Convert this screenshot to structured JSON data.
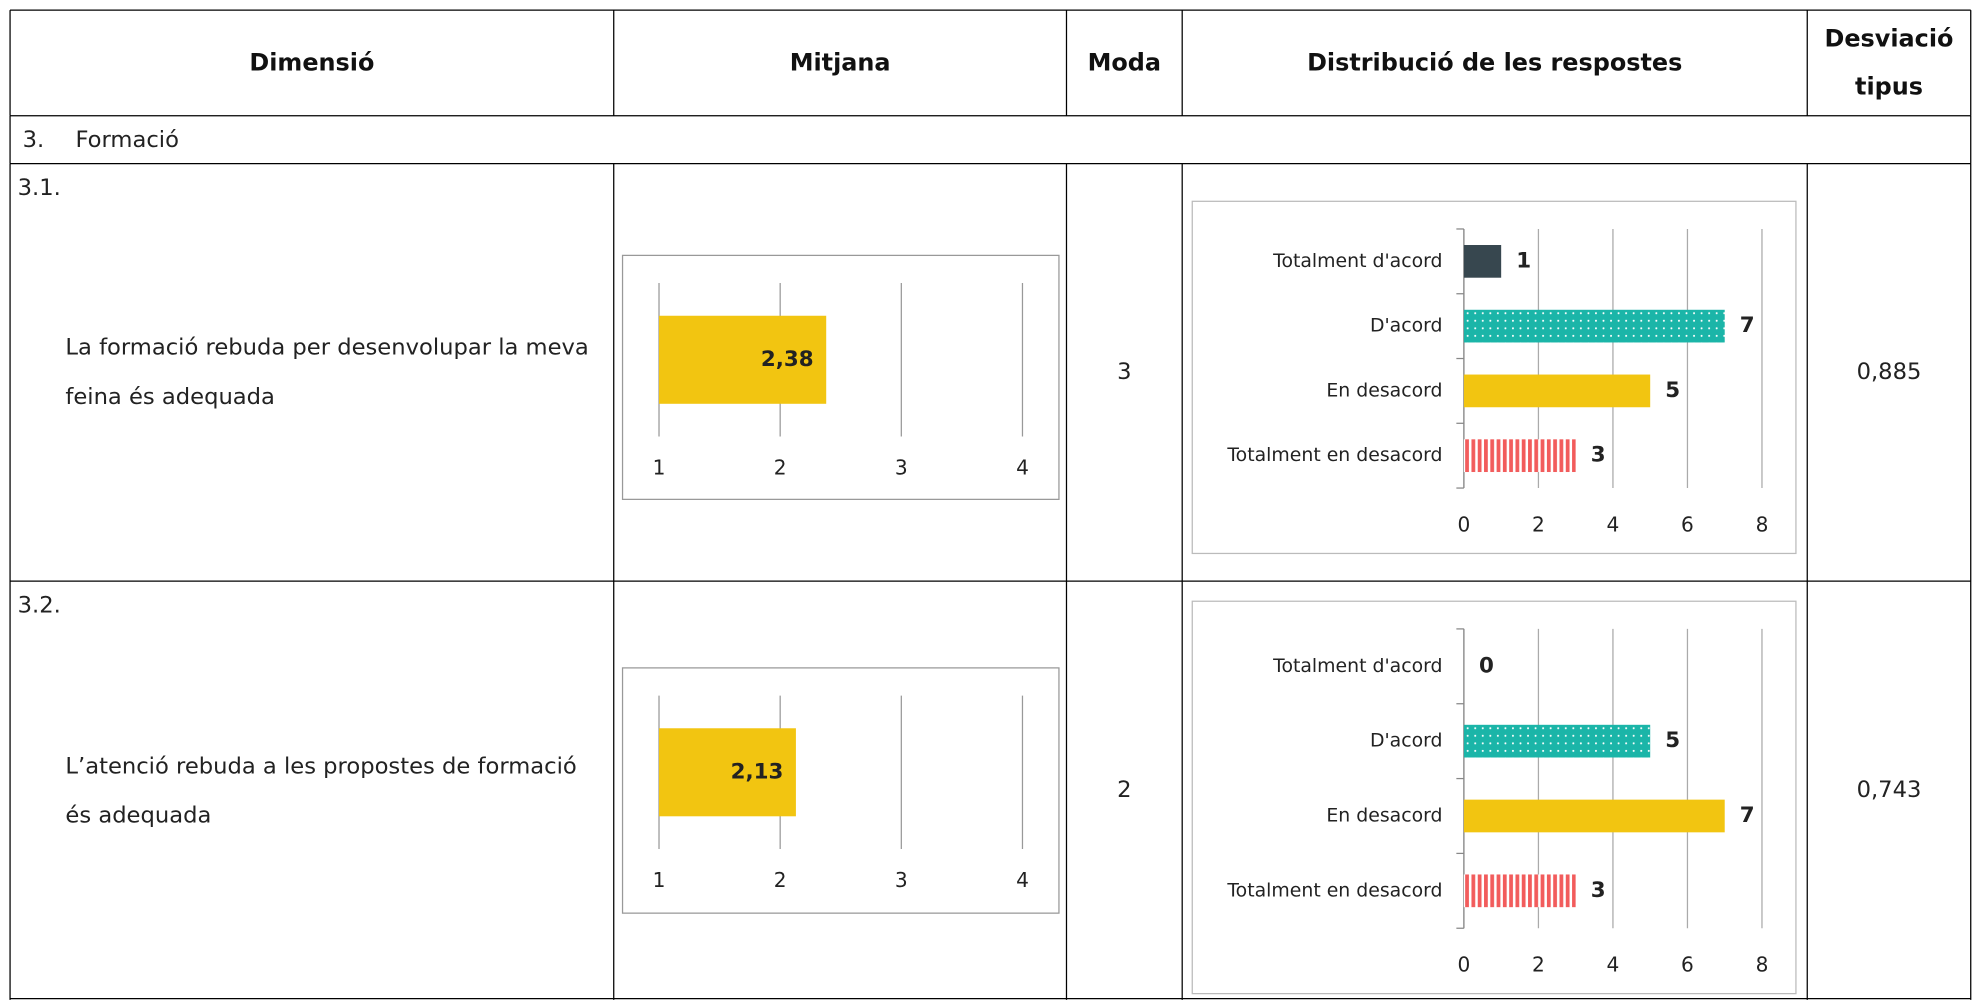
{
  "table": {
    "headers": [
      "Dimensió",
      "Mitjana",
      "Moda",
      "Distribució de les respostes",
      "Desviació tipus"
    ],
    "section": {
      "number": "3.",
      "label": "Formació"
    },
    "rows": [
      {
        "number": "3.1.",
        "dimension": "La formació rebuda per desenvolupar la meva feina és adequada",
        "mean_chart": {
          "type": "bar",
          "orientation": "horizontal",
          "values": [
            2.38
          ],
          "value_labels": [
            "2,38"
          ],
          "color": "#f2c511",
          "xlim": [
            1,
            4
          ],
          "xticks": [
            1,
            2,
            3,
            4
          ],
          "grid": true
        },
        "mode": 3,
        "distribution_chart": {
          "type": "bar",
          "orientation": "horizontal",
          "categories": [
            "Totalment d'acord",
            "D'acord",
            "En desacord",
            "Totalment en desacord"
          ],
          "values": [
            1,
            7,
            5,
            3
          ],
          "colors": [
            "#37474f",
            "#1bb5a8",
            "#f2c511",
            "#f25c5c"
          ],
          "patterns": [
            null,
            "dots",
            null,
            "stripes"
          ],
          "xlim": [
            0,
            8
          ],
          "xticks": [
            0,
            2,
            4,
            6,
            8
          ],
          "grid": true
        },
        "std_dev": "0,885"
      },
      {
        "number": "3.2.",
        "dimension": "L’atenció rebuda a les propostes de formació és adequada",
        "mean_chart": {
          "type": "bar",
          "orientation": "horizontal",
          "values": [
            2.13
          ],
          "value_labels": [
            "2,13"
          ],
          "color": "#f2c511",
          "xlim": [
            1,
            4
          ],
          "xticks": [
            1,
            2,
            3,
            4
          ],
          "grid": true
        },
        "mode": 2,
        "distribution_chart": {
          "type": "bar",
          "orientation": "horizontal",
          "categories": [
            "Totalment d'acord",
            "D'acord",
            "En desacord",
            "Totalment en desacord"
          ],
          "values": [
            0,
            5,
            7,
            3
          ],
          "colors": [
            "#37474f",
            "#1bb5a8",
            "#f2c511",
            "#f25c5c"
          ],
          "patterns": [
            null,
            "dots",
            null,
            "stripes"
          ],
          "xlim": [
            0,
            8
          ],
          "xticks": [
            0,
            2,
            4,
            6,
            8
          ],
          "grid": true
        },
        "std_dev": "0,743"
      }
    ]
  }
}
